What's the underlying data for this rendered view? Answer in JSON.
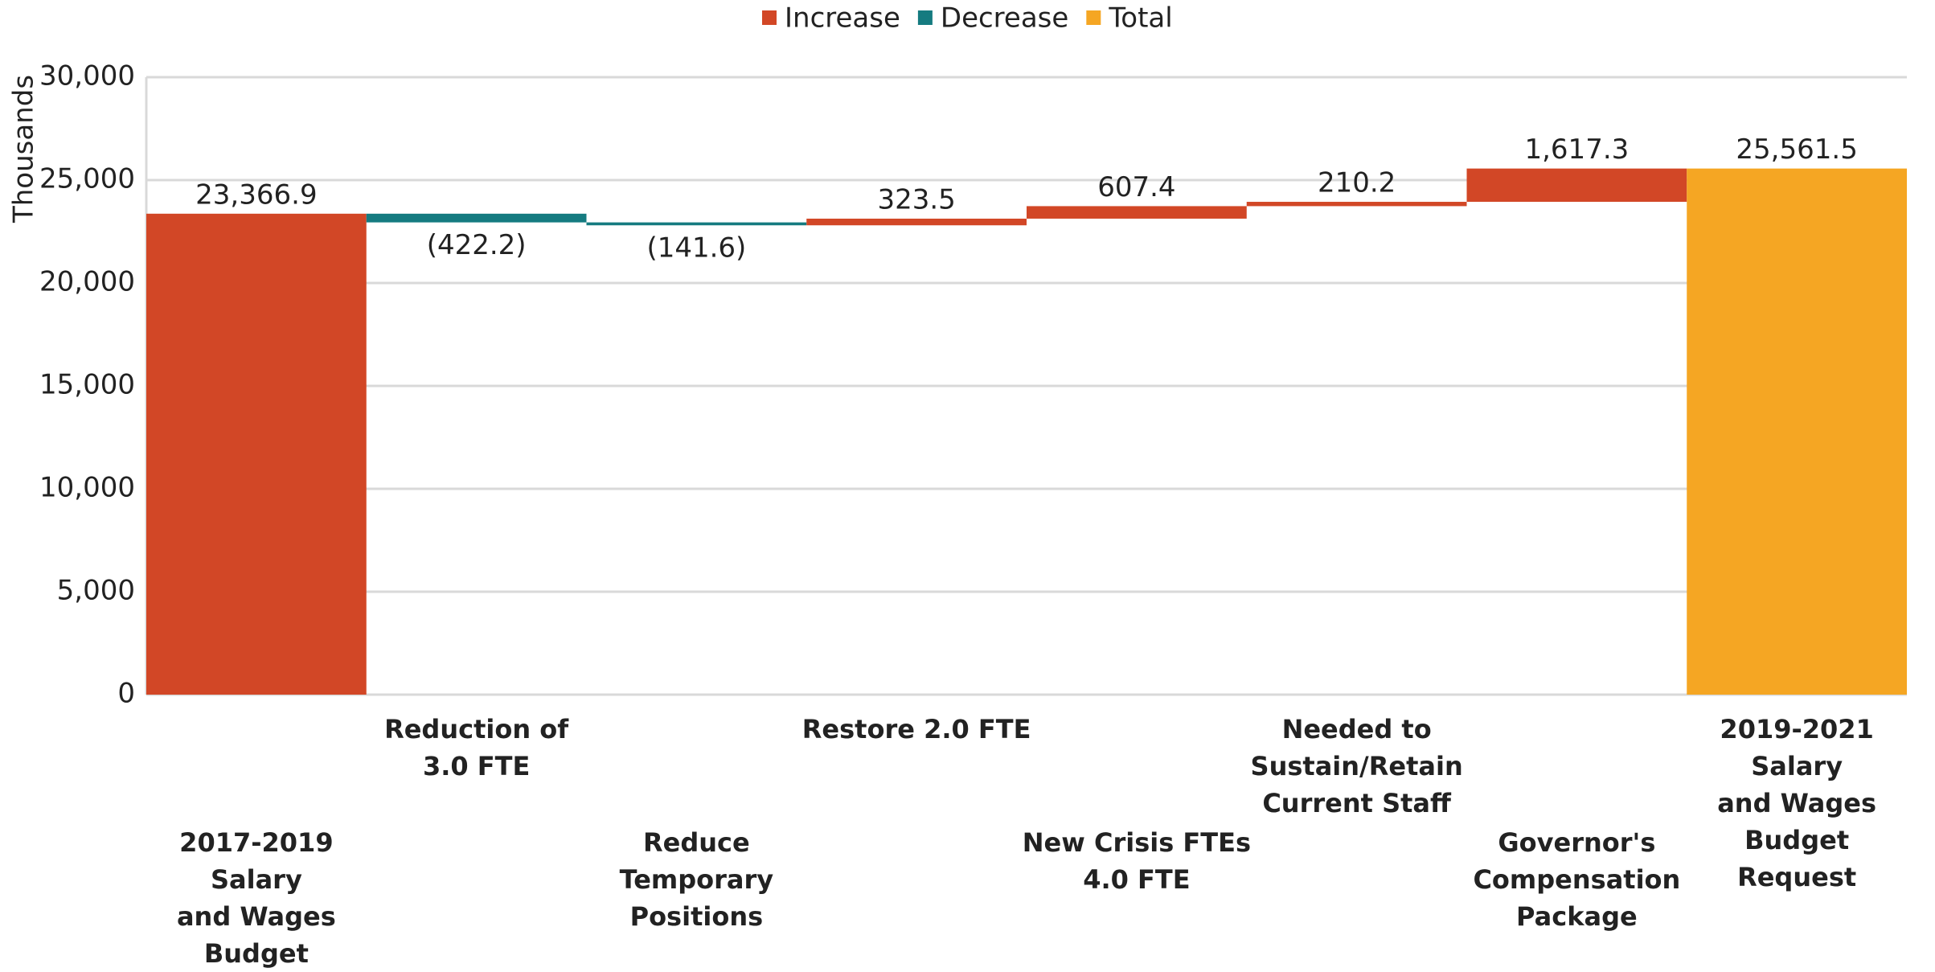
{
  "chart_data": {
    "type": "waterfall",
    "y_label": "Thousands",
    "categories": [
      "2017-2019 Salary\nand Wages Budget",
      "Reduction of\n3.0 FTE",
      "Reduce Temporary\nPositions",
      "Restore 2.0 FTE",
      "New Crisis FTEs\n4.0 FTE",
      "Needed to\nSustain/Retain\nCurrent Staff",
      "Governor's\nCompensation\nPackage",
      "2019-2021 Salary\nand Wages Budget\nRequest"
    ],
    "values": [
      23366.9,
      -422.2,
      -141.6,
      323.5,
      607.4,
      210.2,
      1617.3,
      25561.5
    ],
    "value_labels": [
      "23,366.9",
      "(422.2)",
      "(141.6)",
      "323.5",
      "607.4",
      "210.2",
      "1,617.3",
      "25,561.5"
    ],
    "kinds": [
      "Increase",
      "Decrease",
      "Decrease",
      "Increase",
      "Increase",
      "Increase",
      "Increase",
      "Total"
    ],
    "legend": [
      {
        "name": "Increase",
        "color": "#d24726"
      },
      {
        "name": "Decrease",
        "color": "#157b80"
      },
      {
        "name": "Total",
        "color": "#f5a623"
      }
    ],
    "ylim": [
      0,
      30000
    ],
    "yticks": [
      0,
      {
        "value": 5000,
        "label": "5,000"
      },
      {
        "value": 10000,
        "label": "10,000"
      },
      {
        "value": 15000,
        "label": "15,000"
      },
      {
        "value": 20000,
        "label": "20,000"
      },
      {
        "value": 25000,
        "label": "25,000"
      },
      {
        "value": 30000,
        "label": "30,000"
      }
    ],
    "grid": true
  }
}
